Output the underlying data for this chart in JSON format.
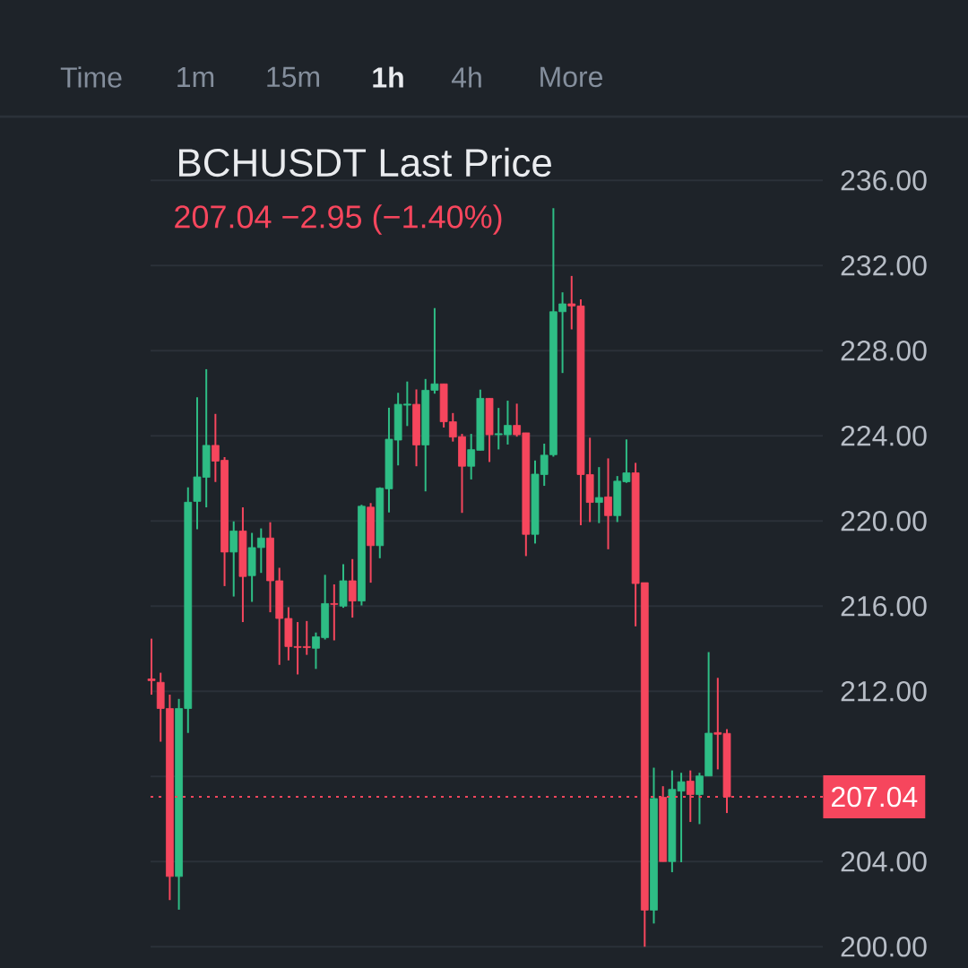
{
  "chart_data": {
    "type": "candlestick",
    "title": "BCHUSDT Last Price",
    "subtitle": "207.04  −2.95 (−1.40%)",
    "annotations": [
      "Time",
      "1m",
      "15m",
      "1h",
      "4h",
      "More"
    ],
    "categories": [
      null,
      null,
      null,
      null,
      null,
      null,
      null,
      null,
      null,
      null,
      null,
      null,
      null,
      null,
      null,
      null,
      null,
      null,
      null,
      null,
      null,
      null,
      null,
      null,
      null,
      null,
      null,
      null,
      null,
      null,
      null,
      null,
      null,
      null,
      null,
      null,
      null,
      null,
      null,
      null,
      null,
      null,
      null,
      null,
      null,
      null,
      null,
      null,
      null,
      null,
      null,
      null,
      null,
      null,
      null,
      null,
      null,
      null,
      null,
      null,
      null,
      null,
      null,
      null
    ],
    "ohlc": [
      [
        212.58,
        214.47,
        211.84,
        212.5
      ],
      [
        212.42,
        212.87,
        209.63,
        211.19
      ],
      [
        211.19,
        211.84,
        202.19,
        203.3
      ],
      [
        203.3,
        211.64,
        201.74,
        211.19
      ],
      [
        211.19,
        221.58,
        210.04,
        220.88
      ],
      [
        220.92,
        225.81,
        219.61,
        222.07
      ],
      [
        222.05,
        227.13,
        220.64,
        223.55
      ],
      [
        223.55,
        225.03,
        221.83,
        222.81
      ],
      [
        222.85,
        223.0,
        216.94,
        218.54
      ],
      [
        218.54,
        219.98,
        216.45,
        219.53
      ],
      [
        219.53,
        220.64,
        215.25,
        217.39
      ],
      [
        217.43,
        219.44,
        216.2,
        218.75
      ],
      [
        218.75,
        219.65,
        217.56,
        219.2
      ],
      [
        219.2,
        219.94,
        215.71,
        217.19
      ],
      [
        217.19,
        217.8,
        213.24,
        215.42
      ],
      [
        215.42,
        215.95,
        213.45,
        214.1
      ],
      [
        214.1,
        215.25,
        212.79,
        214.06
      ],
      [
        214.1,
        215.3,
        213.71,
        214.05
      ],
      [
        214.02,
        214.76,
        213.05,
        214.56
      ],
      [
        214.52,
        217.47,
        214.43,
        216.12
      ],
      [
        216.12,
        217.02,
        214.39,
        216.08
      ],
      [
        216.0,
        217.97,
        215.92,
        217.19
      ],
      [
        217.19,
        218.21,
        215.46,
        216.24
      ],
      [
        216.24,
        220.76,
        216.03,
        220.69
      ],
      [
        220.65,
        220.84,
        217.1,
        218.84
      ],
      [
        218.84,
        221.58,
        218.25,
        221.54
      ],
      [
        221.51,
        225.32,
        220.4,
        223.84
      ],
      [
        223.8,
        226.02,
        222.61,
        225.48
      ],
      [
        225.44,
        226.55,
        224.46,
        225.49
      ],
      [
        225.48,
        226.18,
        222.57,
        223.57
      ],
      [
        223.57,
        226.67,
        221.39,
        226.14
      ],
      [
        226.14,
        230.0,
        225.98,
        226.44
      ],
      [
        226.44,
        226.44,
        224.39,
        224.66
      ],
      [
        224.66,
        225.07,
        223.73,
        223.94
      ],
      [
        223.96,
        224.09,
        220.38,
        222.57
      ],
      [
        222.57,
        224.09,
        221.95,
        223.35
      ],
      [
        223.32,
        226.17,
        223.32,
        225.76
      ],
      [
        225.76,
        225.76,
        222.77,
        224.05
      ],
      [
        224.05,
        225.31,
        223.36,
        224.1
      ],
      [
        224.05,
        225.65,
        223.59,
        224.49
      ],
      [
        224.49,
        225.51,
        223.96,
        224.05
      ],
      [
        224.14,
        224.14,
        218.35,
        219.37
      ],
      [
        219.37,
        222.84,
        218.94,
        222.2
      ],
      [
        222.18,
        223.63,
        221.65,
        223.09
      ],
      [
        223.11,
        234.69,
        223.02,
        229.83
      ],
      [
        229.83,
        230.74,
        226.95,
        230.2
      ],
      [
        230.2,
        231.51,
        229.0,
        230.1
      ],
      [
        230.1,
        230.41,
        219.8,
        222.18
      ],
      [
        222.18,
        223.91,
        219.95,
        220.87
      ],
      [
        220.87,
        222.53,
        219.9,
        221.1
      ],
      [
        221.13,
        222.94,
        218.67,
        220.25
      ],
      [
        220.25,
        222.11,
        219.95,
        221.87
      ],
      [
        221.84,
        223.83,
        221.79,
        222.26
      ],
      [
        222.26,
        222.73,
        215.05,
        217.06
      ],
      [
        217.1,
        217.11,
        200.0,
        201.72
      ],
      [
        201.72,
        208.41,
        201.09,
        206.96
      ],
      [
        207.02,
        207.54,
        204.0,
        204.0
      ],
      [
        204.0,
        208.28,
        203.5,
        207.39
      ],
      [
        207.31,
        208.17,
        203.97,
        207.75
      ],
      [
        207.78,
        208.28,
        205.86,
        207.15
      ],
      [
        207.15,
        208.17,
        205.76,
        208.02
      ],
      [
        208.02,
        213.84,
        208.02,
        210.03
      ],
      [
        210.06,
        212.63,
        208.33,
        209.98
      ],
      [
        210.02,
        210.22,
        206.28,
        207.04
      ]
    ],
    "colors": [
      "#f6465d",
      "#f6465d",
      "#f6465d",
      "#2ebd85",
      "#2ebd85",
      "#2ebd85",
      "#2ebd85",
      "#f6465d",
      "#f6465d",
      "#2ebd85",
      "#f6465d",
      "#2ebd85",
      "#2ebd85",
      "#f6465d",
      "#f6465d",
      "#f6465d",
      "#f6465d",
      "#f6465d",
      "#2ebd85",
      "#2ebd85",
      "#f6465d",
      "#2ebd85",
      "#f6465d",
      "#2ebd85",
      "#f6465d",
      "#2ebd85",
      "#2ebd85",
      "#2ebd85",
      "#2ebd85",
      "#f6465d",
      "#2ebd85",
      "#2ebd85",
      "#f6465d",
      "#f6465d",
      "#f6465d",
      "#2ebd85",
      "#2ebd85",
      "#f6465d",
      "#2ebd85",
      "#2ebd85",
      "#f6465d",
      "#f6465d",
      "#2ebd85",
      "#2ebd85",
      "#2ebd85",
      "#2ebd85",
      "#f6465d",
      "#f6465d",
      "#f6465d",
      "#2ebd85",
      "#f6465d",
      "#2ebd85",
      "#2ebd85",
      "#f6465d",
      "#f6465d",
      "#2ebd85",
      "#f6465d",
      "#2ebd85",
      "#2ebd85",
      "#f6465d",
      "#2ebd85",
      "#2ebd85",
      "#f6465d",
      "#f6465d"
    ],
    "ylim": [
      199,
      239
    ],
    "yticks": [
      {
        "value": 200,
        "label": "200.00"
      },
      {
        "value": 204,
        "label": "204.00"
      },
      {
        "value": 208,
        "label": null
      },
      {
        "value": 212,
        "label": "212.00"
      },
      {
        "value": 216,
        "label": "216.00"
      },
      {
        "value": 220,
        "label": "220.00"
      },
      {
        "value": 224,
        "label": "224.00"
      },
      {
        "value": 228,
        "label": "228.00"
      },
      {
        "value": 232,
        "label": "232.00"
      },
      {
        "value": 236,
        "label": "236.00"
      }
    ],
    "tick_labels": "y",
    "grid": "y",
    "ref_lines": [
      {
        "axis": "y",
        "value": 207.04,
        "label": "207.04",
        "color": "#f6465d",
        "line_style": "dotted"
      }
    ]
  }
}
